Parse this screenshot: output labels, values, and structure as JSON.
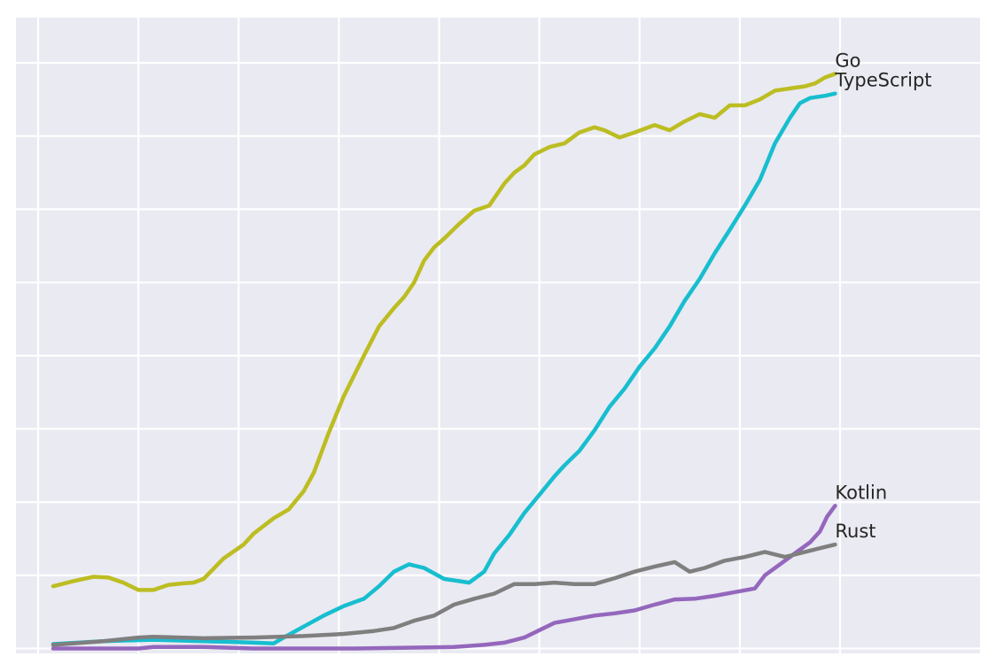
{
  "chart_data": {
    "type": "line",
    "title": "",
    "xlabel": "",
    "ylabel": "",
    "xlim": [
      -0.15,
      8.15
    ],
    "ylim": [
      -0.05,
      8.75
    ],
    "grid": true,
    "legend": "none",
    "series": [
      {
        "name": "Go",
        "color": "#bcbd22",
        "points": [
          [
            0.0,
            0.85
          ],
          [
            0.2,
            0.92
          ],
          [
            0.4,
            0.98
          ],
          [
            0.55,
            0.97
          ],
          [
            0.7,
            0.9
          ],
          [
            0.85,
            0.8
          ],
          [
            1.0,
            0.8
          ],
          [
            1.15,
            0.87
          ],
          [
            1.3,
            0.89
          ],
          [
            1.4,
            0.9
          ],
          [
            1.5,
            0.95
          ],
          [
            1.7,
            1.23
          ],
          [
            1.9,
            1.42
          ],
          [
            2.0,
            1.57
          ],
          [
            2.2,
            1.78
          ],
          [
            2.35,
            1.9
          ],
          [
            2.5,
            2.15
          ],
          [
            2.6,
            2.4
          ],
          [
            2.75,
            2.95
          ],
          [
            2.9,
            3.45
          ],
          [
            3.1,
            4.0
          ],
          [
            3.25,
            4.4
          ],
          [
            3.4,
            4.65
          ],
          [
            3.5,
            4.8
          ],
          [
            3.6,
            5.0
          ],
          [
            3.7,
            5.3
          ],
          [
            3.8,
            5.48
          ],
          [
            3.9,
            5.6
          ],
          [
            4.05,
            5.8
          ],
          [
            4.2,
            5.98
          ],
          [
            4.35,
            6.05
          ],
          [
            4.5,
            6.35
          ],
          [
            4.6,
            6.5
          ],
          [
            4.7,
            6.6
          ],
          [
            4.8,
            6.75
          ],
          [
            4.95,
            6.85
          ],
          [
            5.1,
            6.9
          ],
          [
            5.25,
            7.05
          ],
          [
            5.4,
            7.12
          ],
          [
            5.5,
            7.08
          ],
          [
            5.65,
            6.98
          ],
          [
            5.8,
            7.05
          ],
          [
            6.0,
            7.15
          ],
          [
            6.15,
            7.08
          ],
          [
            6.3,
            7.2
          ],
          [
            6.45,
            7.3
          ],
          [
            6.6,
            7.25
          ],
          [
            6.75,
            7.42
          ],
          [
            6.9,
            7.42
          ],
          [
            7.05,
            7.5
          ],
          [
            7.2,
            7.62
          ],
          [
            7.35,
            7.65
          ],
          [
            7.5,
            7.68
          ],
          [
            7.6,
            7.72
          ],
          [
            7.7,
            7.8
          ],
          [
            7.8,
            7.85
          ]
        ]
      },
      {
        "name": "TypeScript",
        "color": "#17becf",
        "points": [
          [
            0.0,
            0.06
          ],
          [
            0.5,
            0.1
          ],
          [
            1.0,
            0.12
          ],
          [
            1.5,
            0.1
          ],
          [
            2.0,
            0.08
          ],
          [
            2.2,
            0.07
          ],
          [
            2.3,
            0.15
          ],
          [
            2.5,
            0.3
          ],
          [
            2.7,
            0.45
          ],
          [
            2.9,
            0.58
          ],
          [
            3.1,
            0.68
          ],
          [
            3.25,
            0.85
          ],
          [
            3.4,
            1.05
          ],
          [
            3.55,
            1.15
          ],
          [
            3.7,
            1.1
          ],
          [
            3.9,
            0.95
          ],
          [
            4.05,
            0.92
          ],
          [
            4.15,
            0.9
          ],
          [
            4.3,
            1.05
          ],
          [
            4.4,
            1.3
          ],
          [
            4.55,
            1.55
          ],
          [
            4.7,
            1.85
          ],
          [
            4.85,
            2.1
          ],
          [
            5.0,
            2.35
          ],
          [
            5.1,
            2.5
          ],
          [
            5.25,
            2.7
          ],
          [
            5.4,
            2.98
          ],
          [
            5.55,
            3.3
          ],
          [
            5.7,
            3.55
          ],
          [
            5.85,
            3.85
          ],
          [
            6.0,
            4.1
          ],
          [
            6.15,
            4.4
          ],
          [
            6.3,
            4.75
          ],
          [
            6.45,
            5.05
          ],
          [
            6.6,
            5.4
          ],
          [
            6.75,
            5.72
          ],
          [
            6.9,
            6.05
          ],
          [
            7.05,
            6.4
          ],
          [
            7.2,
            6.9
          ],
          [
            7.35,
            7.25
          ],
          [
            7.45,
            7.45
          ],
          [
            7.55,
            7.52
          ],
          [
            7.7,
            7.55
          ],
          [
            7.8,
            7.58
          ]
        ]
      },
      {
        "name": "Kotlin",
        "color": "#9467bd",
        "points": [
          [
            0.0,
            0.0
          ],
          [
            0.5,
            0.0
          ],
          [
            0.85,
            0.0
          ],
          [
            1.0,
            0.02
          ],
          [
            1.5,
            0.02
          ],
          [
            2.0,
            0.0
          ],
          [
            3.0,
            0.0
          ],
          [
            4.0,
            0.02
          ],
          [
            4.3,
            0.05
          ],
          [
            4.5,
            0.08
          ],
          [
            4.7,
            0.15
          ],
          [
            4.85,
            0.25
          ],
          [
            5.0,
            0.35
          ],
          [
            5.2,
            0.4
          ],
          [
            5.4,
            0.45
          ],
          [
            5.6,
            0.48
          ],
          [
            5.8,
            0.52
          ],
          [
            6.0,
            0.6
          ],
          [
            6.2,
            0.67
          ],
          [
            6.4,
            0.68
          ],
          [
            6.6,
            0.72
          ],
          [
            6.8,
            0.77
          ],
          [
            7.0,
            0.82
          ],
          [
            7.1,
            1.0
          ],
          [
            7.25,
            1.15
          ],
          [
            7.4,
            1.3
          ],
          [
            7.55,
            1.45
          ],
          [
            7.65,
            1.6
          ],
          [
            7.72,
            1.8
          ],
          [
            7.8,
            1.95
          ]
        ]
      },
      {
        "name": "Rust",
        "color": "#7f7f7f",
        "points": [
          [
            0.0,
            0.05
          ],
          [
            0.5,
            0.1
          ],
          [
            0.85,
            0.15
          ],
          [
            1.0,
            0.16
          ],
          [
            1.5,
            0.14
          ],
          [
            2.0,
            0.15
          ],
          [
            2.5,
            0.17
          ],
          [
            2.9,
            0.2
          ],
          [
            3.2,
            0.24
          ],
          [
            3.4,
            0.28
          ],
          [
            3.6,
            0.38
          ],
          [
            3.8,
            0.45
          ],
          [
            4.0,
            0.6
          ],
          [
            4.2,
            0.68
          ],
          [
            4.4,
            0.75
          ],
          [
            4.6,
            0.88
          ],
          [
            4.8,
            0.88
          ],
          [
            5.0,
            0.9
          ],
          [
            5.2,
            0.88
          ],
          [
            5.4,
            0.88
          ],
          [
            5.6,
            0.96
          ],
          [
            5.8,
            1.05
          ],
          [
            6.0,
            1.12
          ],
          [
            6.2,
            1.18
          ],
          [
            6.35,
            1.05
          ],
          [
            6.5,
            1.1
          ],
          [
            6.7,
            1.2
          ],
          [
            6.9,
            1.25
          ],
          [
            7.1,
            1.32
          ],
          [
            7.3,
            1.25
          ],
          [
            7.5,
            1.32
          ],
          [
            7.65,
            1.37
          ],
          [
            7.8,
            1.42
          ]
        ]
      }
    ]
  }
}
